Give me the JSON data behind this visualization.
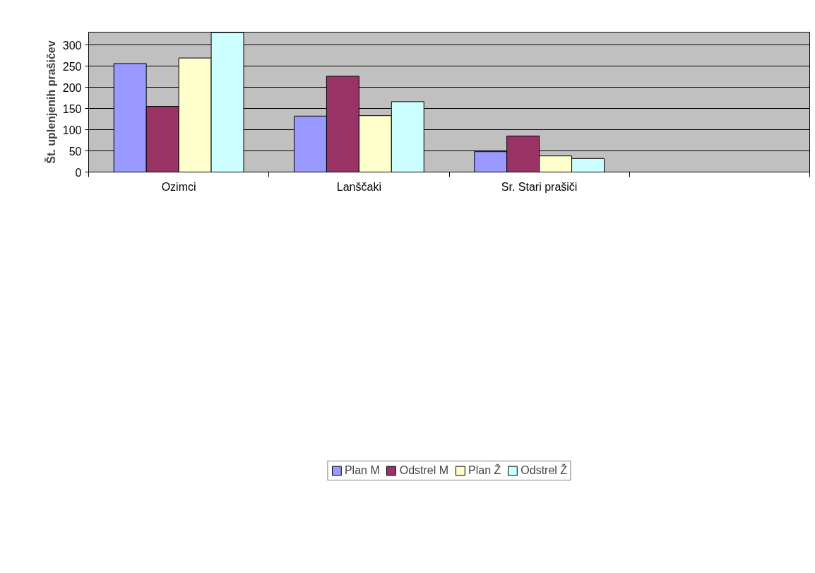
{
  "chart_data": {
    "type": "bar",
    "ylabel": "Št. uplenjenih prašičev",
    "categories": [
      "Ozimci",
      "Lanščaki",
      "Sr. Stari prašiči",
      null
    ],
    "series": [
      {
        "name": "Plan M",
        "color": "#9999ff",
        "values": [
          256,
          132,
          48,
          null
        ]
      },
      {
        "name": "Odstrel M",
        "color": "#993366",
        "values": [
          155,
          226,
          85,
          null
        ]
      },
      {
        "name": "Plan Ž",
        "color": "#ffffcc",
        "values": [
          269,
          133,
          38,
          null
        ]
      },
      {
        "name": "Odstrel Ž",
        "color": "#ccffff",
        "values": [
          329,
          166,
          32,
          null
        ]
      }
    ],
    "ylim": [
      0,
      330
    ],
    "yticks": [
      0,
      50,
      100,
      150,
      200,
      250,
      300
    ],
    "grid": "y",
    "legend": "bottom"
  }
}
